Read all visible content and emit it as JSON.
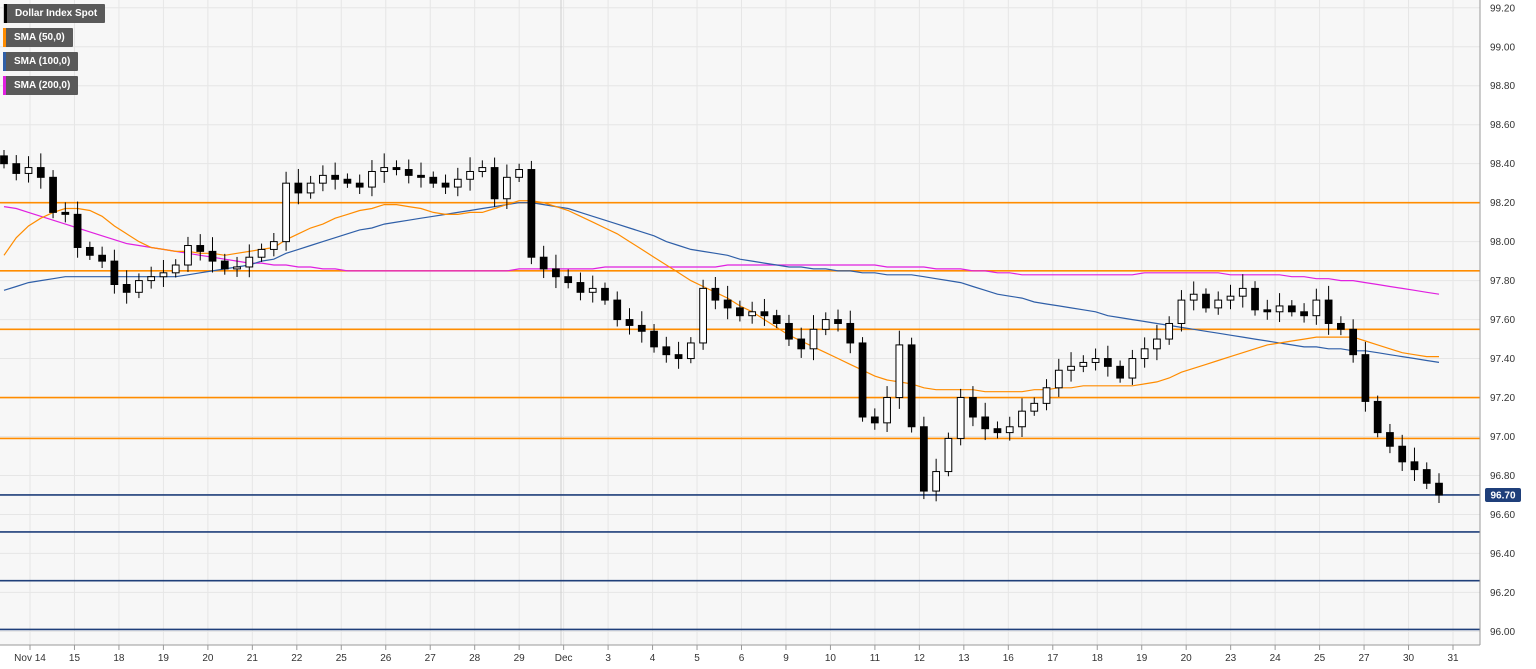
{
  "colors": {
    "grid": "#e6e6e6",
    "plot_background": "#f7f7f7",
    "candle_up": "#ffffff",
    "candle_down": "#000000",
    "resistance": "#ff8c00",
    "support": "#1f3f7a",
    "price_tag": "#1f3f7a"
  },
  "legend": [
    {
      "label": "Dollar Index Spot",
      "color": "#000000"
    },
    {
      "label": "SMA (50,0)",
      "color": "#ff8c00"
    },
    {
      "label": "SMA (100,0)",
      "color": "#2f5fa8"
    },
    {
      "label": "SMA (200,0)",
      "color": "#e020e0"
    }
  ],
  "current_price_label": "96.70",
  "chart_data": {
    "type": "candlestick",
    "title": "Dollar Index Spot",
    "ylim": [
      95.93,
      99.24
    ],
    "y_ticks": [
      "99.20",
      "99.00",
      "98.80",
      "98.60",
      "98.40",
      "98.20",
      "98.00",
      "97.80",
      "97.60",
      "97.40",
      "97.20",
      "97.00",
      "96.80",
      "96.60",
      "96.40",
      "96.20",
      "96.00"
    ],
    "x_ticks": [
      "Nov 14",
      "15",
      "18",
      "19",
      "20",
      "21",
      "22",
      "25",
      "26",
      "27",
      "28",
      "29",
      "Dec",
      "3",
      "4",
      "5",
      "6",
      "9",
      "10",
      "11",
      "12",
      "13",
      "16",
      "17",
      "18",
      "19",
      "20",
      "23",
      "24",
      "25",
      "27",
      "30",
      "31"
    ],
    "grid": true,
    "resistance_levels": [
      98.2,
      97.85,
      97.55,
      97.2,
      96.99
    ],
    "support_levels": [
      96.7,
      96.51,
      96.26,
      96.01
    ],
    "current_price": 96.7,
    "close_series": [
      98.4,
      98.35,
      98.38,
      98.33,
      98.15,
      98.14,
      97.97,
      97.93,
      97.9,
      97.78,
      97.74,
      97.8,
      97.82,
      97.84,
      97.88,
      97.98,
      97.95,
      97.9,
      97.86,
      97.87,
      97.92,
      97.96,
      98.0,
      98.3,
      98.25,
      98.3,
      98.34,
      98.32,
      98.3,
      98.28,
      98.36,
      98.38,
      98.37,
      98.34,
      98.33,
      98.3,
      98.28,
      98.32,
      98.36,
      98.38,
      98.22,
      98.33,
      98.37,
      97.92,
      97.86,
      97.82,
      97.79,
      97.74,
      97.76,
      97.7,
      97.6,
      97.57,
      97.54,
      97.46,
      97.42,
      97.4,
      97.48,
      97.76,
      97.7,
      97.66,
      97.62,
      97.64,
      97.62,
      97.58,
      97.5,
      97.45,
      97.55,
      97.6,
      97.58,
      97.48,
      97.1,
      97.07,
      97.2,
      97.47,
      97.05,
      96.72,
      96.82,
      96.99,
      97.2,
      97.1,
      97.04,
      97.02,
      97.05,
      97.13,
      97.17,
      97.25,
      97.34,
      97.36,
      97.38,
      97.4,
      97.36,
      97.3,
      97.4,
      97.45,
      97.5,
      97.58,
      97.7,
      97.73,
      97.66,
      97.7,
      97.72,
      97.76,
      97.65,
      97.64,
      97.67,
      97.64,
      97.62,
      97.7,
      97.58,
      97.55,
      97.42,
      97.18,
      97.02,
      96.95,
      96.87,
      96.83,
      96.76,
      96.7
    ],
    "sma_50": [
      97.93,
      98.02,
      98.08,
      98.12,
      98.15,
      98.17,
      98.17,
      98.16,
      98.13,
      98.08,
      98.04,
      98.0,
      97.97,
      97.96,
      97.95,
      97.95,
      97.94,
      97.94,
      97.93,
      97.94,
      97.95,
      97.96,
      97.97,
      98.01,
      98.04,
      98.07,
      98.09,
      98.12,
      98.14,
      98.16,
      98.17,
      98.19,
      98.19,
      98.18,
      98.17,
      98.15,
      98.14,
      98.14,
      98.15,
      98.15,
      98.17,
      98.19,
      98.21,
      98.21,
      98.2,
      98.18,
      98.16,
      98.13,
      98.1,
      98.07,
      98.04,
      98.0,
      97.96,
      97.92,
      97.88,
      97.84,
      97.8,
      97.77,
      97.74,
      97.71,
      97.67,
      97.64,
      97.6,
      97.56,
      97.52,
      97.49,
      97.46,
      97.43,
      97.4,
      97.37,
      97.34,
      97.31,
      97.29,
      97.28,
      97.27,
      97.25,
      97.24,
      97.24,
      97.24,
      97.24,
      97.23,
      97.23,
      97.23,
      97.23,
      97.24,
      97.24,
      97.25,
      97.25,
      97.26,
      97.26,
      97.26,
      97.26,
      97.26,
      97.27,
      97.28,
      97.3,
      97.33,
      97.35,
      97.37,
      97.39,
      97.41,
      97.43,
      97.45,
      97.47,
      97.48,
      97.49,
      97.5,
      97.51,
      97.51,
      97.51,
      97.51,
      97.49,
      97.47,
      97.45,
      97.43,
      97.42,
      97.41,
      97.41
    ],
    "sma_100": [
      97.75,
      97.77,
      97.79,
      97.8,
      97.81,
      97.82,
      97.82,
      97.82,
      97.82,
      97.82,
      97.82,
      97.82,
      97.82,
      97.82,
      97.82,
      97.83,
      97.84,
      97.85,
      97.86,
      97.87,
      97.88,
      97.9,
      97.91,
      97.94,
      97.96,
      97.98,
      98.0,
      98.02,
      98.04,
      98.06,
      98.07,
      98.09,
      98.1,
      98.11,
      98.12,
      98.13,
      98.14,
      98.15,
      98.16,
      98.17,
      98.18,
      98.19,
      98.2,
      98.2,
      98.19,
      98.18,
      98.17,
      98.15,
      98.13,
      98.11,
      98.09,
      98.07,
      98.05,
      98.03,
      98.0,
      97.98,
      97.96,
      97.95,
      97.94,
      97.93,
      97.91,
      97.9,
      97.89,
      97.88,
      97.87,
      97.87,
      97.86,
      97.86,
      97.85,
      97.85,
      97.84,
      97.84,
      97.83,
      97.83,
      97.83,
      97.82,
      97.81,
      97.8,
      97.79,
      97.77,
      97.75,
      97.73,
      97.72,
      97.71,
      97.69,
      97.68,
      97.67,
      97.66,
      97.65,
      97.64,
      97.62,
      97.61,
      97.6,
      97.59,
      97.58,
      97.57,
      97.56,
      97.55,
      97.54,
      97.53,
      97.52,
      97.51,
      97.5,
      97.49,
      97.48,
      97.47,
      97.46,
      97.46,
      97.45,
      97.45,
      97.44,
      97.44,
      97.43,
      97.42,
      97.41,
      97.4,
      97.39,
      97.38
    ],
    "sma_200": [
      98.18,
      98.17,
      98.15,
      98.13,
      98.11,
      98.09,
      98.07,
      98.05,
      98.03,
      98.01,
      97.99,
      97.98,
      97.97,
      97.96,
      97.95,
      97.94,
      97.93,
      97.92,
      97.91,
      97.9,
      97.89,
      97.89,
      97.88,
      97.88,
      97.87,
      97.87,
      97.86,
      97.86,
      97.85,
      97.85,
      97.85,
      97.85,
      97.85,
      97.85,
      97.85,
      97.85,
      97.85,
      97.85,
      97.85,
      97.85,
      97.85,
      97.85,
      97.86,
      97.86,
      97.86,
      97.86,
      97.86,
      97.86,
      97.86,
      97.87,
      97.87,
      97.87,
      97.87,
      97.87,
      97.87,
      97.87,
      97.87,
      97.87,
      97.87,
      97.88,
      97.88,
      97.88,
      97.88,
      97.88,
      97.88,
      97.88,
      97.88,
      97.88,
      97.88,
      97.88,
      97.88,
      97.88,
      97.87,
      97.87,
      97.87,
      97.87,
      97.86,
      97.86,
      97.86,
      97.85,
      97.85,
      97.84,
      97.84,
      97.83,
      97.83,
      97.83,
      97.83,
      97.83,
      97.83,
      97.83,
      97.83,
      97.83,
      97.83,
      97.84,
      97.84,
      97.84,
      97.84,
      97.84,
      97.84,
      97.84,
      97.83,
      97.83,
      97.83,
      97.83,
      97.83,
      97.82,
      97.82,
      97.81,
      97.81,
      97.8,
      97.8,
      97.79,
      97.78,
      97.77,
      97.76,
      97.75,
      97.74,
      97.73
    ]
  }
}
